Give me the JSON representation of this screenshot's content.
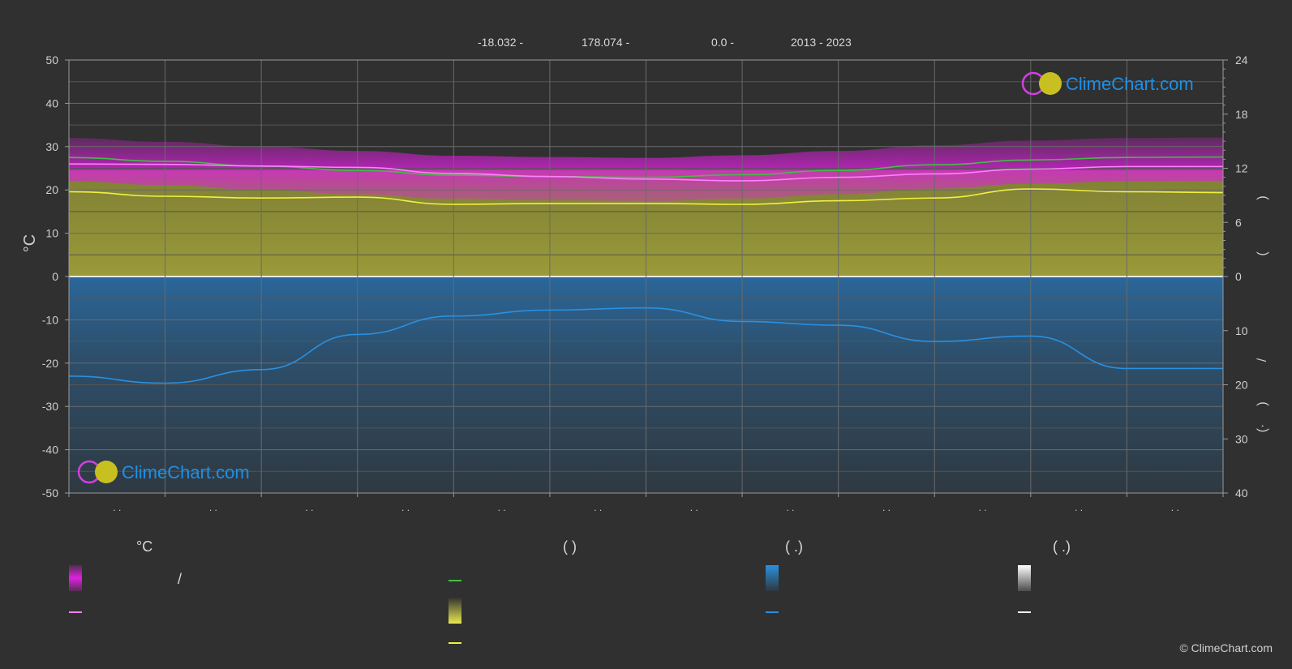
{
  "header": {
    "lat": "-18.032 -",
    "lon": "178.074 -",
    "elev": "0.0 -",
    "years": "2013 - 2023"
  },
  "logo_text": "ClimeChart.com",
  "copyright": "© ClimeChart.com",
  "legend": {
    "col1_head": "°C",
    "col2_head": "(           )",
    "col3_head": "(    .)",
    "col4_head": "(    .)",
    "slash": "/"
  },
  "colors": {
    "background": "#303030",
    "magenta": "#e020e0",
    "pink_line": "#ff80ff",
    "green_line": "#40c040",
    "yellow_line": "#f0f040",
    "yellow_fill": "#9a9a38",
    "blue_fill": "#2a6aa0",
    "blue_line": "#2a90e0",
    "accent_text": "#1e90e6"
  },
  "chart_data": {
    "type": "line",
    "ylabel": "°C",
    "ylim": [
      -50,
      50
    ],
    "yticks": [
      50,
      40,
      30,
      20,
      10,
      0,
      -10,
      -20,
      -30,
      -40,
      -50
    ],
    "right_axis_upper": {
      "ticks": [
        24,
        18,
        12,
        6,
        0
      ],
      "ylim": [
        0,
        24
      ]
    },
    "right_axis_lower": {
      "ticks": [
        0,
        10,
        20,
        30,
        40
      ],
      "ylim": [
        0,
        40
      ]
    },
    "right_axis_labels": [
      ")",
      "(",
      "/",
      ")",
      "(·"
    ],
    "months": 12,
    "x_tick_labels": [
      ". .",
      ". .",
      ". .",
      ". .",
      ". .",
      ". .",
      ". .",
      ". .",
      ". .",
      ". .",
      ". .",
      ". ."
    ],
    "grid": true,
    "series": [
      {
        "key": "max_temp",
        "color": "#40c040",
        "x": [
          0,
          1,
          2,
          3,
          4,
          5,
          6,
          7,
          8,
          9,
          10,
          11,
          12
        ],
        "values": [
          27.5,
          26.6,
          25.5,
          24.5,
          23.4,
          23.1,
          22.9,
          23.5,
          24.5,
          25.8,
          26.9,
          27.5,
          27.6
        ]
      },
      {
        "key": "mean_temp",
        "color": "#ff80ff",
        "x": [
          0,
          1,
          2,
          3,
          4,
          5,
          6,
          7,
          8,
          9,
          10,
          11,
          12
        ],
        "values": [
          26.0,
          25.9,
          25.5,
          25.2,
          23.8,
          23.1,
          22.5,
          22.1,
          22.9,
          23.7,
          24.8,
          25.4,
          25.4
        ]
      },
      {
        "key": "daylight_hours",
        "color": "#f0f040",
        "axis": "right_upper",
        "x": [
          0,
          1,
          2,
          3,
          4,
          5,
          6,
          7,
          8,
          9,
          10,
          11,
          12
        ],
        "values": [
          9.4,
          8.9,
          8.7,
          8.8,
          8.0,
          8.1,
          8.1,
          8.0,
          8.4,
          8.7,
          9.7,
          9.4,
          9.3
        ]
      },
      {
        "key": "precipitation_line",
        "color": "#2a90e0",
        "axis": "right_lower",
        "x": [
          0,
          1,
          2,
          3,
          4,
          5,
          6,
          7,
          8,
          9,
          10,
          11,
          12
        ],
        "values": [
          18.4,
          19.7,
          17.2,
          10.7,
          7.3,
          6.2,
          5.8,
          8.3,
          9.0,
          12.0,
          11.0,
          17.0,
          17.0
        ]
      }
    ]
  }
}
